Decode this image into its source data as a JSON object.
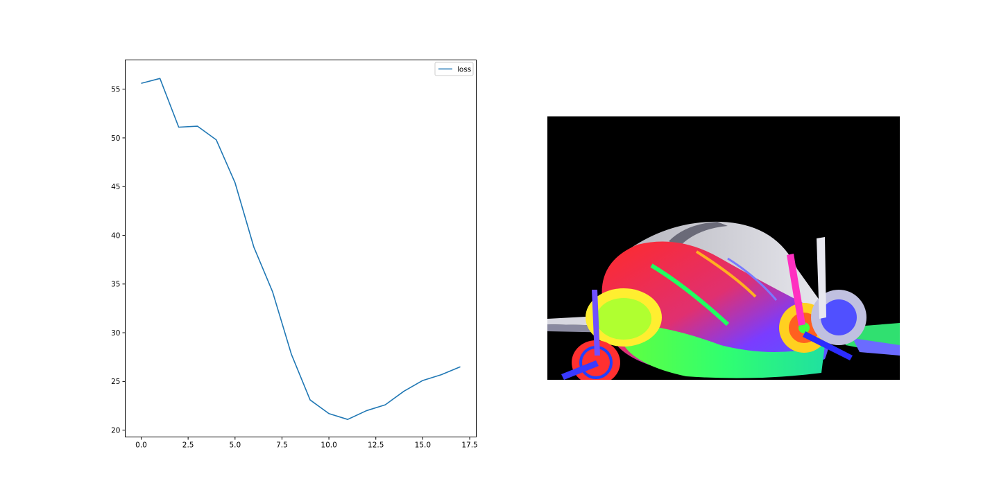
{
  "chart_data": {
    "type": "line",
    "title": "",
    "xlabel": "",
    "ylabel": "",
    "xlim": [
      -0.85,
      17.85
    ],
    "ylim": [
      19.3,
      58.0
    ],
    "x_ticks": [
      0.0,
      2.5,
      5.0,
      7.5,
      10.0,
      12.5,
      15.0,
      17.5
    ],
    "x_tick_labels": [
      "0.0",
      "2.5",
      "5.0",
      "7.5",
      "10.0",
      "12.5",
      "15.0",
      "17.5"
    ],
    "y_ticks": [
      20,
      25,
      30,
      35,
      40,
      45,
      50,
      55
    ],
    "y_tick_labels": [
      "20",
      "25",
      "30",
      "35",
      "40",
      "45",
      "50",
      "55"
    ],
    "grid": false,
    "legend": "top-right",
    "series": [
      {
        "name": "loss",
        "color": "#1f77b4",
        "x": [
          0,
          1,
          2,
          3,
          4,
          5,
          6,
          7,
          8,
          9,
          10,
          11,
          12,
          13,
          14,
          15,
          16,
          17
        ],
        "values": [
          55.6,
          56.1,
          51.1,
          51.2,
          49.8,
          45.4,
          38.8,
          34.2,
          27.8,
          23.1,
          21.7,
          21.1,
          22.0,
          22.6,
          24.0,
          25.1,
          25.7,
          26.5
        ]
      }
    ]
  },
  "image_panel": {
    "description_icon": "airplane-normal-map-icon",
    "background": "#000000"
  }
}
